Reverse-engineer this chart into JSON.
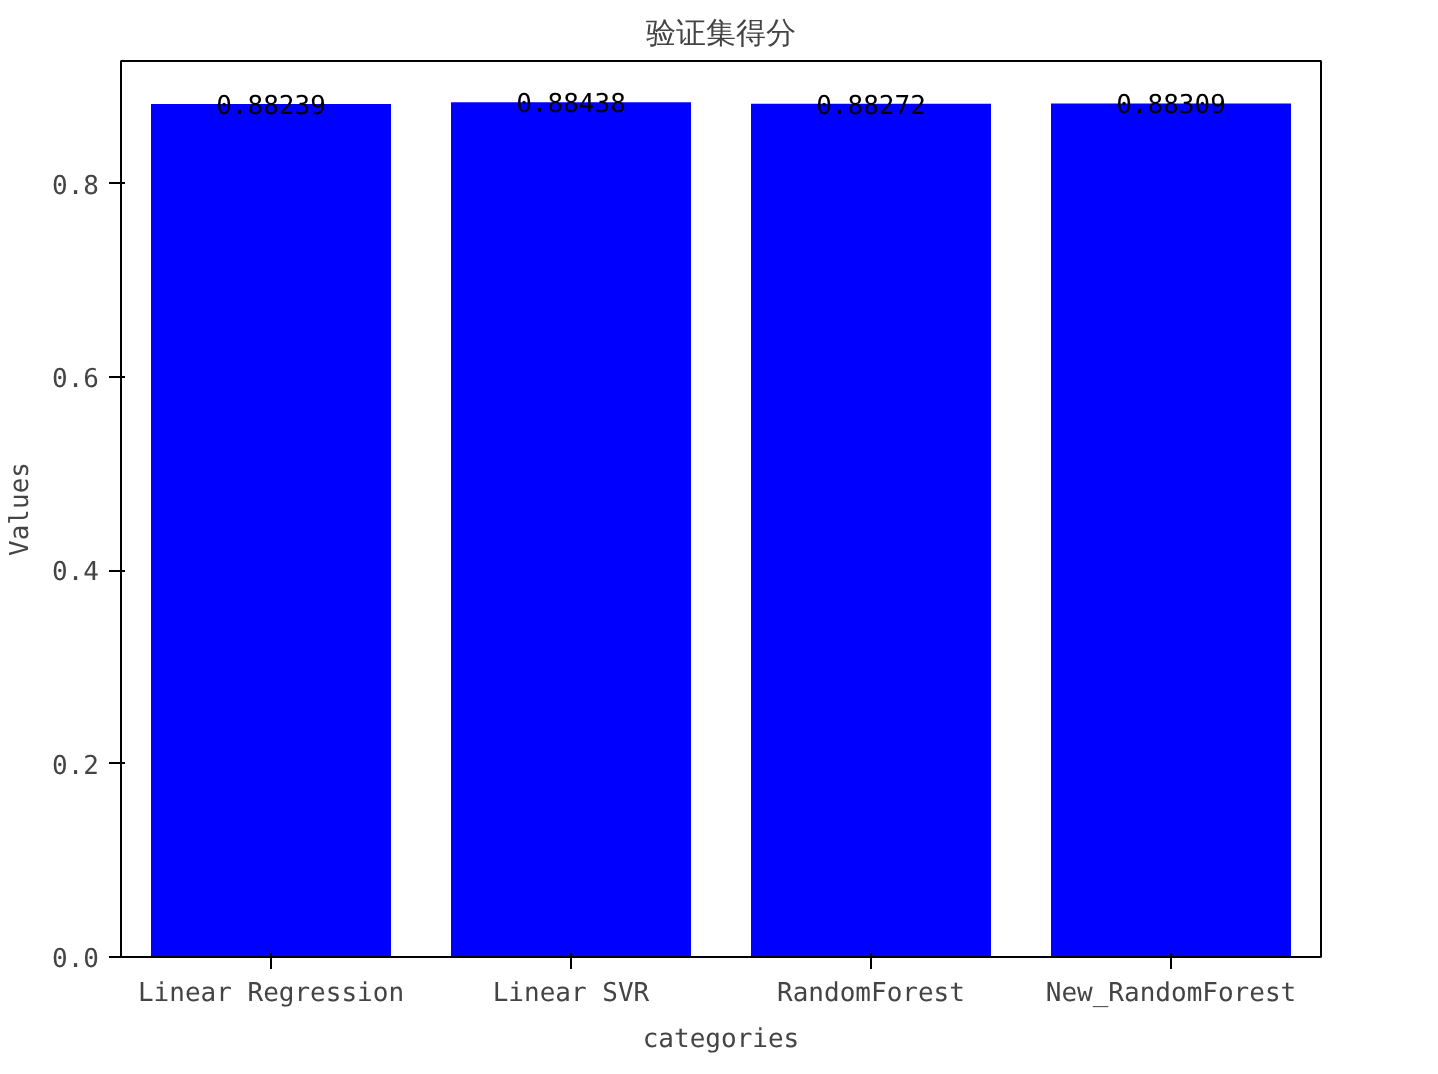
{
  "chart_data": {
    "type": "bar",
    "title": "验证集得分",
    "xlabel": "categories",
    "ylabel": "Values",
    "categories": [
      "Linear Regression",
      "Linear SVR",
      "RandomForest",
      "New_RandomForest"
    ],
    "values": [
      0.88239,
      0.88438,
      0.88272,
      0.88309
    ],
    "color": "#0000ff",
    "ylim": [
      0,
      0.927
    ],
    "yticks": [
      {
        "value": 0,
        "label": "0.0"
      },
      0.2,
      0.4,
      0.6,
      0.8
    ],
    "grid": false,
    "data_labels": true
  }
}
